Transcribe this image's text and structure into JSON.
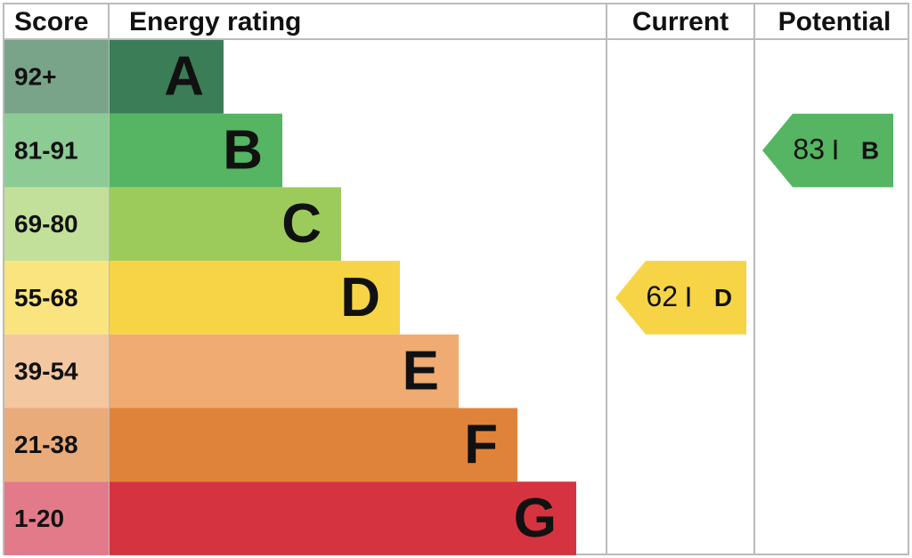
{
  "header": {
    "score": "Score",
    "rating": "Energy rating",
    "current": "Current",
    "potential": "Potential"
  },
  "bands": [
    {
      "range": "92+",
      "letter": "A",
      "color": "#3b7d56",
      "score_color": "#7aa48a"
    },
    {
      "range": "81-91",
      "letter": "B",
      "color": "#55b562",
      "score_color": "#8ccb94"
    },
    {
      "range": "69-80",
      "letter": "C",
      "color": "#9dcb5b",
      "score_color": "#c2e09a"
    },
    {
      "range": "55-68",
      "letter": "D",
      "color": "#f6d445",
      "score_color": "#f9e47f"
    },
    {
      "range": "39-54",
      "letter": "E",
      "color": "#efab71",
      "score_color": "#f3c7a0"
    },
    {
      "range": "21-38",
      "letter": "F",
      "color": "#e0833a",
      "score_color": "#e9ab7a"
    },
    {
      "range": "1-20",
      "letter": "G",
      "color": "#d63341",
      "score_color": "#e27a8a"
    }
  ],
  "current": {
    "value": 62,
    "letter": "D"
  },
  "potential": {
    "value": 83,
    "letter": "B"
  }
}
